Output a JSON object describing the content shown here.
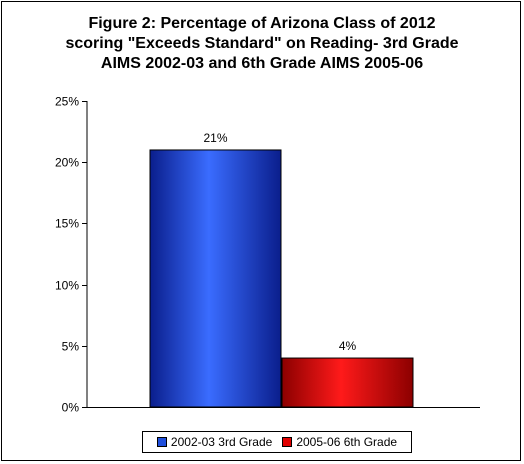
{
  "chart_data": {
    "type": "bar",
    "title_lines": [
      "Figure 2: Percentage of Arizona Class of 2012",
      "scoring \"Exceeds Standard\" on Reading- 3rd Grade",
      "AIMS 2002-03 and 6th Grade AIMS 2005-06"
    ],
    "ylim": [
      0,
      25
    ],
    "yticks": [
      "0%",
      "5%",
      "10%",
      "15%",
      "20%",
      "25%"
    ],
    "ytick_values": [
      0,
      5,
      10,
      15,
      20,
      25
    ],
    "grid": false,
    "legend_position": "bottom",
    "series": [
      {
        "name": "2002-03 3rd Grade",
        "value": 21,
        "label": "21%",
        "color": "#1f4fdc"
      },
      {
        "name": "2005-06 6th Grade",
        "value": 4,
        "label": "4%",
        "color": "#e00000"
      }
    ]
  }
}
